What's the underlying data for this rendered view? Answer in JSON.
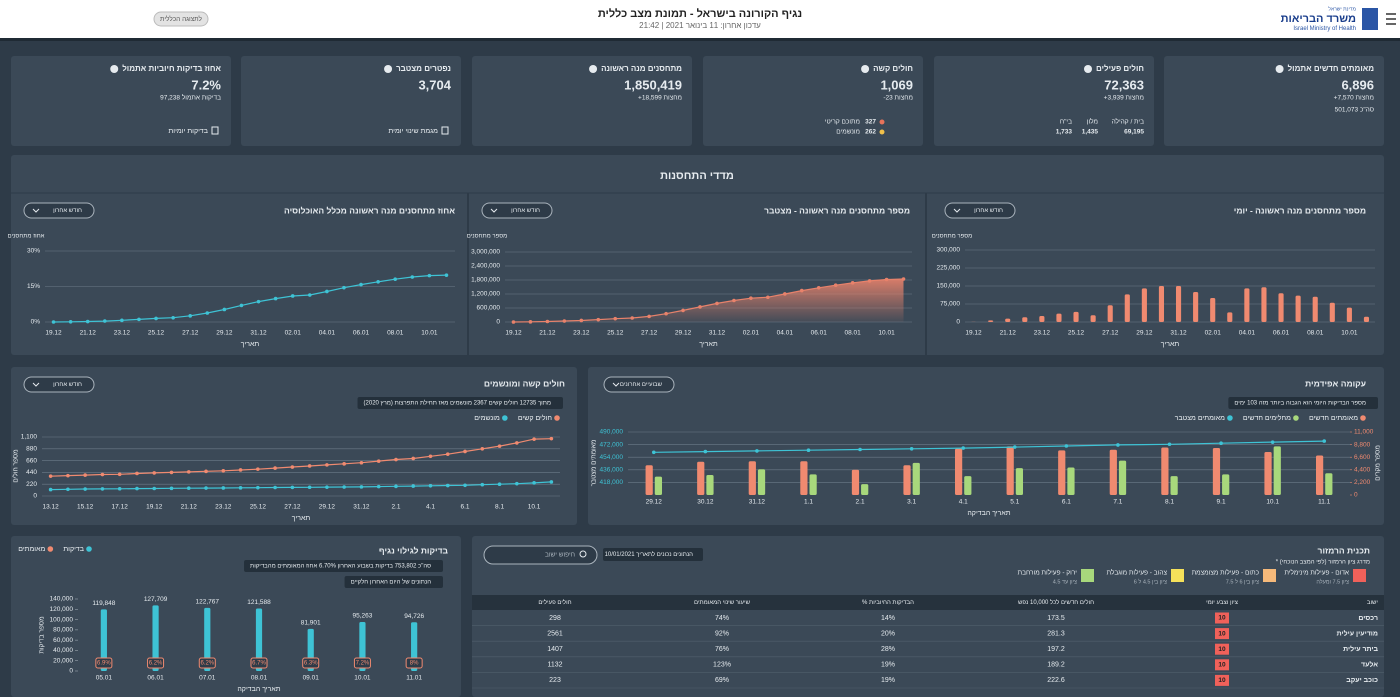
{
  "header": {
    "title": "נגיף הקורונה בישראל - תמונת מצב כללית",
    "updated": "עדכון אחרון: 11 בינואר 2021 | 21:42",
    "button": "לתצוגה הכללית",
    "logo_top": "מדינת ישראל",
    "logo": "משרד הבריאות",
    "logo_en": "Israel Ministry of Health"
  },
  "kpis": [
    {
      "title": "מאומתים חדשים אתמול",
      "value": "6,896",
      "sub": [
        "+7,570 מחצות",
        "501,073 סה\"כ"
      ]
    },
    {
      "title": "חולים פעילים",
      "value": "72,363",
      "sub": [
        "+3,939 מחצות"
      ],
      "breakdown": [
        {
          "label": "בית / קהילה",
          "value": "69,195"
        },
        {
          "label": "מלון",
          "value": "1,435"
        },
        {
          "label": "בי\"ח",
          "value": "1,733"
        }
      ]
    },
    {
      "title": "חולים קשה",
      "value": "1,069",
      "sub": [
        "-23 מחצות"
      ],
      "items": [
        {
          "label": "מתוכם קריטי",
          "value": "327",
          "color": "#e8735a"
        },
        {
          "label": "מונשמים",
          "value": "262",
          "color": "#f0c04a"
        }
      ]
    },
    {
      "title": "מתחסנים מנה ראשונה",
      "value": "1,850,419",
      "sub": [
        "+18,599 מחצות"
      ]
    },
    {
      "title": "נפטרים מצטבר",
      "value": "3,704",
      "link": "מגמת שינוי יומית"
    },
    {
      "title": "אחוז בדיקות חיוביות אתמול",
      "value": "7.2%",
      "sub": [
        "97,238 בדיקות אתמול"
      ],
      "link": "בדיקות יומיות"
    }
  ],
  "vaccination_title": "מדדי התחסנות",
  "chart_data": [
    {
      "type": "bar",
      "title": "מספר מתחסנים מנה ראשונה - יומי",
      "dropdown": "חודש אחרון",
      "ylabel": "מספר מתחסנים",
      "xlabel": "תאריך",
      "categories": [
        "19.12",
        null,
        "21.12",
        null,
        "23.12",
        null,
        "25.12",
        null,
        "27.12",
        null,
        "29.12",
        null,
        "31.12",
        null,
        "02.01",
        null,
        "04.01",
        null,
        "06.01",
        null,
        "08.01",
        null,
        "10.01",
        null
      ],
      "values": [
        300,
        7000,
        14000,
        20000,
        25000,
        35000,
        42000,
        28000,
        70000,
        115000,
        140000,
        150000,
        150000,
        125000,
        100000,
        40000,
        140000,
        145000,
        120000,
        110000,
        105000,
        80000,
        60000,
        22000
      ],
      "color": "#f08a70",
      "ylim": [
        0,
        300000
      ],
      "yticks": [
        0,
        {
          "value": 75000,
          "label": "75,000"
        },
        {
          "value": 150000,
          "label": "150,000"
        },
        {
          "value": 225000,
          "label": "225,000"
        },
        {
          "value": 300000,
          "label": "300,000"
        }
      ],
      "grid": true
    },
    {
      "type": "area",
      "title": "מספר מתחסנים מנה ראשונה - מצטבר",
      "dropdown": "חודש אחרון",
      "ylabel": "מספר מתחסנים",
      "xlabel": "תאריך",
      "categories": [
        "19.12",
        null,
        "21.12",
        null,
        "23.12",
        null,
        "25.12",
        null,
        "27.12",
        null,
        "29.12",
        null,
        "31.12",
        null,
        "02.01",
        null,
        "04.01",
        null,
        "06.01",
        null,
        "08.01",
        null,
        "10.01",
        null
      ],
      "values": [
        300,
        7300,
        21000,
        41000,
        66000,
        101000,
        143000,
        171000,
        241000,
        356000,
        496000,
        646000,
        796000,
        921000,
        1021000,
        1061000,
        1201000,
        1346000,
        1466000,
        1576000,
        1681000,
        1761000,
        1821000,
        1843000
      ],
      "color": "#e8826b",
      "ylim": [
        0,
        3000000
      ],
      "yticks": [
        0,
        {
          "value": 600000,
          "label": "600,000"
        },
        {
          "value": 1200000,
          "label": "1,200,000"
        },
        {
          "value": 1800000,
          "label": "1,800,000"
        },
        {
          "value": 2400000,
          "label": "2,400,000"
        },
        {
          "value": 3000000,
          "label": "3,000,000"
        }
      ],
      "grid": true
    },
    {
      "type": "line",
      "title": "אחוז מתחסנים מנה ראשונה מכלל האוכלוסיה",
      "dropdown": "חודש אחרון",
      "ylabel": "אחוז מתחסנים",
      "xlabel": "תאריך",
      "categories": [
        "19.12",
        null,
        "21.12",
        null,
        "23.12",
        null,
        "25.12",
        null,
        "27.12",
        null,
        "29.12",
        null,
        "31.12",
        null,
        "02.01",
        null,
        "04.01",
        null,
        "06.01",
        null,
        "08.01",
        null,
        "10.01",
        null
      ],
      "values": [
        0,
        0.1,
        0.2,
        0.4,
        0.7,
        1.1,
        1.5,
        1.8,
        2.6,
        3.8,
        5.3,
        7,
        8.6,
        9.9,
        11,
        11.4,
        12.9,
        14.5,
        15.8,
        17,
        18.1,
        19,
        19.6,
        19.8
      ],
      "color": "#3ec3d5",
      "ylim": [
        0,
        30
      ],
      "yticks": [
        {
          "value": 0,
          "label": "0%"
        },
        {
          "value": 15,
          "label": "15%"
        },
        {
          "value": 30,
          "label": "30%"
        }
      ],
      "grid": true
    },
    {
      "type": "line",
      "title": "חולים קשה ומונשמים",
      "dropdown": "חודש אחרון",
      "note": "מתוך 12735 חולים קשים 2367 מונשמים מאז תחילת התפרצות (מרץ 2020)",
      "ylabel": "מספר חולים",
      "xlabel": "תאריך",
      "categories": [
        "13.12",
        null,
        "15.12",
        null,
        "17.12",
        null,
        "19.12",
        null,
        "21.12",
        null,
        "23.12",
        null,
        "25.12",
        null,
        "27.12",
        null,
        "29.12",
        null,
        "31.12",
        null,
        "2.1",
        null,
        "4.1",
        null,
        "6.1",
        null,
        "8.1",
        null,
        "10.1",
        null
      ],
      "series": [
        {
          "name": "חולים קשים",
          "color": "#f08a70",
          "values": [
            370,
            380,
            390,
            400,
            405,
            420,
            430,
            440,
            450,
            460,
            470,
            485,
            500,
            520,
            540,
            560,
            580,
            600,
            620,
            650,
            680,
            700,
            740,
            780,
            830,
            880,
            930,
            990,
            1060,
            1069
          ]
        },
        {
          "name": "מונשמים",
          "color": "#3ec3d5",
          "values": [
            120,
            125,
            130,
            132,
            135,
            138,
            140,
            143,
            145,
            148,
            150,
            152,
            155,
            158,
            160,
            163,
            165,
            168,
            170,
            175,
            180,
            185,
            190,
            195,
            200,
            210,
            220,
            230,
            245,
            262
          ]
        }
      ],
      "ylim": [
        0,
        1100
      ],
      "yticks": [
        0,
        220,
        440,
        660,
        880,
        {
          "value": 1100,
          "label": "1,100"
        }
      ],
      "grid": true
    },
    {
      "type": "bar",
      "title": "עקומה אפידמית",
      "dropdown": "שבועיים אחרונים",
      "note": "מספר הבדיקות היומי הוא הגבוה ביותר מזה 103 ימים",
      "ylabel": "מאומתים מצטבר",
      "y2label": "מספר מקרים",
      "xlabel": "תאריך הבדיקה",
      "categories": [
        "29.12",
        "30.12",
        "31.12",
        "1.1",
        "2.1",
        "3.1",
        "4.1",
        "5.1",
        "6.1",
        "7.1",
        "8.1",
        "9.1",
        "10.1",
        "11.1"
      ],
      "series": [
        {
          "name": "מאומתים חדשים",
          "color": "#f08a70",
          "type": "bar",
          "axis": "y2",
          "values": [
            5200,
            5800,
            5900,
            5900,
            4400,
            5200,
            8100,
            8500,
            7800,
            7900,
            8300,
            8200,
            7500,
            6900
          ]
        },
        {
          "name": "מחלימים חדשים",
          "color": "#a8d87c",
          "type": "bar",
          "axis": "y2",
          "values": [
            3200,
            3500,
            4500,
            3600,
            1900,
            5600,
            3300,
            4700,
            4800,
            6000,
            3300,
            3600,
            8500,
            3800
          ]
        },
        {
          "name": "מאומתים מצטבר",
          "color": "#3ec3d5",
          "type": "line",
          "axis": "y",
          "values": [
            461000,
            462000,
            463000,
            464000,
            465000,
            466000,
            467000,
            468500,
            470000,
            471500,
            472500,
            474000,
            475500,
            477000
          ]
        }
      ],
      "ylim": [
        400000,
        490000
      ],
      "yticks": [
        {
          "value": 418000,
          "label": "418,000"
        },
        {
          "value": 436000,
          "label": "436,000"
        },
        {
          "value": 454000,
          "label": "454,000"
        },
        {
          "value": 472000,
          "label": "472,000"
        },
        {
          "value": 490000,
          "label": "490,000"
        }
      ],
      "y2lim": [
        0,
        11000
      ],
      "y2ticks": [
        0,
        {
          "value": 2200,
          "label": "2,200"
        },
        {
          "value": 4400,
          "label": "4,400"
        },
        {
          "value": 6600,
          "label": "6,600"
        },
        {
          "value": 8800,
          "label": "8,800"
        },
        {
          "value": 11000,
          "label": "11,000"
        }
      ],
      "grid": true
    },
    {
      "type": "bar",
      "title": "בדיקות לגילוי נגיף",
      "note": "סה\"כ 753,802 בדיקות בשבוע האחרון 6.70% אחוז המאומתים מהבדיקות",
      "note2": "הנתונים של היום האחרון חלקיים",
      "ylabel": "מספר בדיקות",
      "xlabel": "תאריך הבדיקה",
      "categories": [
        "05.01",
        "06.01",
        "07.01",
        "08.01",
        "09.01",
        "10.01",
        "11.01"
      ],
      "series": [
        {
          "name": "בדיקות",
          "color": "#3ec3d5",
          "type": "bar",
          "values": [
            119848,
            127709,
            122767,
            121588,
            81901,
            95263,
            94726
          ],
          "value_labels": [
            "119,848",
            "127,709",
            "122,767",
            "121,588",
            "81,901",
            "95,263",
            "94,726"
          ]
        },
        {
          "name": "מאומתים",
          "color": "#f08a70",
          "type": "badge",
          "values": [
            6.9,
            6.2,
            6.2,
            6.7,
            6.3,
            7.2,
            8
          ],
          "value_labels": [
            "6.9%",
            "6.2%",
            "6.2%",
            "6.7%",
            "6.3%",
            "7.2%",
            "8%"
          ]
        }
      ],
      "ylim": [
        0,
        140000
      ],
      "yticks": [
        0,
        {
          "value": 20000,
          "label": "20,000"
        },
        {
          "value": 40000,
          "label": "40,000"
        },
        {
          "value": 60000,
          "label": "60,000"
        },
        {
          "value": 80000,
          "label": "80,000"
        },
        {
          "value": 100000,
          "label": "100,000"
        },
        {
          "value": 120000,
          "label": "120,000"
        },
        {
          "value": 140000,
          "label": "140,000"
        }
      ],
      "grid": false
    }
  ],
  "traffic": {
    "title": "תכנית הרמזור",
    "subtitle": "* מדרג ציון הרמזור (לפי המצב הנוכחי)",
    "search": "חיפוש ישוב",
    "date": "הנתונים נכונים לתאריך 10/01/2021",
    "legend": [
      {
        "label": "אדום - פעילות מינימלית",
        "range": "ציון 7.5 ומעלה",
        "color": "#f0615a"
      },
      {
        "label": "כתום - פעילות מצומצמת",
        "range": "ציון בין 6 ל 7.5",
        "color": "#f5b97a"
      },
      {
        "label": "צהוב - פעילות מוגבלת",
        "range": "ציון בין 4.5 ל 6",
        "color": "#f5e15a"
      },
      {
        "label": "ירוק - פעילות מורחבת",
        "range": "ציון עד 4.5",
        "color": "#a8d87c"
      }
    ],
    "columns": [
      "ישוב",
      "ציון וצבע יומי",
      "חולים חדשים לכל 10,000 נפש",
      "% הבדיקות החיוביות",
      "שיעור שינוי המאומתים",
      "חולים פעילים"
    ],
    "rows": [
      [
        "רכסים",
        "10",
        "173.5",
        "14%",
        "74%",
        "298"
      ],
      [
        "מודיעין עילית",
        "10",
        "281.3",
        "20%",
        "92%",
        "2561"
      ],
      [
        "ביתר עילית",
        "10",
        "197.2",
        "28%",
        "76%",
        "1407"
      ],
      [
        "אלעד",
        "10",
        "189.2",
        "19%",
        "123%",
        "1132"
      ],
      [
        "כוכב יעקב",
        "10",
        "222.6",
        "19%",
        "69%",
        "223"
      ]
    ]
  }
}
